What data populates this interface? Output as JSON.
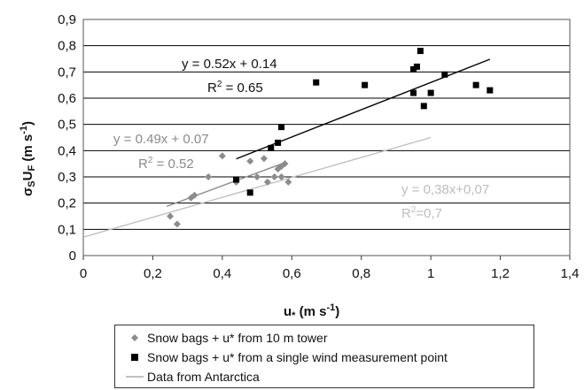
{
  "chart_data": {
    "type": "scatter",
    "xlabel": "u",
    "xlabel_sub": "*",
    "xlabel_units": " (m s",
    "xlabel_exp": "-1",
    "xlabel_close": ")",
    "ylabel_sigma": "σ",
    "ylabel_sigma_sub": "S",
    "ylabel_u": "U",
    "ylabel_u_sub": "F",
    "ylabel_units": " (m s",
    "ylabel_exp": "-1",
    "ylabel_close": ")",
    "xlim": [
      0,
      1.4
    ],
    "ylim": [
      0,
      0.9
    ],
    "x_ticks": [
      {
        "v": 0,
        "label": "0"
      },
      {
        "v": 0.2,
        "label": "0,2"
      },
      {
        "v": 0.4,
        "label": "0,4"
      },
      {
        "v": 0.6,
        "label": "0,6"
      },
      {
        "v": 0.8,
        "label": "0,8"
      },
      {
        "v": 1.0,
        "label": "1"
      },
      {
        "v": 1.2,
        "label": "1,2"
      },
      {
        "v": 1.4,
        "label": "1,4"
      }
    ],
    "y_ticks": [
      {
        "v": 0,
        "label": "0"
      },
      {
        "v": 0.1,
        "label": "0,1"
      },
      {
        "v": 0.2,
        "label": "0,2"
      },
      {
        "v": 0.3,
        "label": "0,3"
      },
      {
        "v": 0.4,
        "label": "0,4"
      },
      {
        "v": 0.5,
        "label": "0,5"
      },
      {
        "v": 0.6,
        "label": "0,6"
      },
      {
        "v": 0.7,
        "label": "0,7"
      },
      {
        "v": 0.8,
        "label": "0,8"
      },
      {
        "v": 0.9,
        "label": "0,9"
      }
    ],
    "grid": "horizontal",
    "legend_position": "bottom",
    "series": [
      {
        "name": "Snow bags + u* from 10 m tower",
        "marker": "diamond",
        "color": "#8c8c8c",
        "points": [
          [
            0.25,
            0.15
          ],
          [
            0.27,
            0.12
          ],
          [
            0.31,
            0.22
          ],
          [
            0.32,
            0.23
          ],
          [
            0.36,
            0.3
          ],
          [
            0.4,
            0.38
          ],
          [
            0.44,
            0.28
          ],
          [
            0.48,
            0.36
          ],
          [
            0.5,
            0.3
          ],
          [
            0.52,
            0.37
          ],
          [
            0.53,
            0.28
          ],
          [
            0.55,
            0.3
          ],
          [
            0.56,
            0.33
          ],
          [
            0.57,
            0.3
          ],
          [
            0.57,
            0.34
          ],
          [
            0.58,
            0.35
          ],
          [
            0.59,
            0.28
          ]
        ],
        "trend": {
          "slope": 0.49,
          "intercept": 0.07,
          "x_range": [
            0.24,
            0.58
          ],
          "equation": "y = 0.49x + 0.07",
          "r2": "R",
          "r2_exp": "2",
          "r2_val": " = 0.52"
        }
      },
      {
        "name": "Snow bags + u* from a single wind measurement point",
        "marker": "square",
        "color": "#000000",
        "points": [
          [
            0.44,
            0.29
          ],
          [
            0.48,
            0.24
          ],
          [
            0.54,
            0.41
          ],
          [
            0.56,
            0.43
          ],
          [
            0.57,
            0.49
          ],
          [
            0.67,
            0.66
          ],
          [
            0.81,
            0.65
          ],
          [
            0.95,
            0.62
          ],
          [
            0.95,
            0.71
          ],
          [
            0.96,
            0.72
          ],
          [
            0.97,
            0.78
          ],
          [
            0.98,
            0.57
          ],
          [
            1.0,
            0.62
          ],
          [
            1.04,
            0.69
          ],
          [
            1.13,
            0.65
          ],
          [
            1.17,
            0.63
          ]
        ],
        "trend": {
          "slope": 0.52,
          "intercept": 0.14,
          "x_range": [
            0.44,
            1.17
          ],
          "equation": "y = 0.52x + 0.14",
          "r2": "R",
          "r2_exp": "2",
          "r2_val": " = 0.65"
        }
      },
      {
        "name": "Data from Antarctica",
        "marker": "line",
        "color": "#c0c0c0",
        "trend": {
          "slope": 0.38,
          "intercept": 0.07,
          "x_range": [
            0,
            1.0
          ],
          "equation": "y = 0,38x+0,07",
          "r2": "R",
          "r2_exp": "2",
          "r2_val": "=0,7"
        }
      }
    ]
  }
}
